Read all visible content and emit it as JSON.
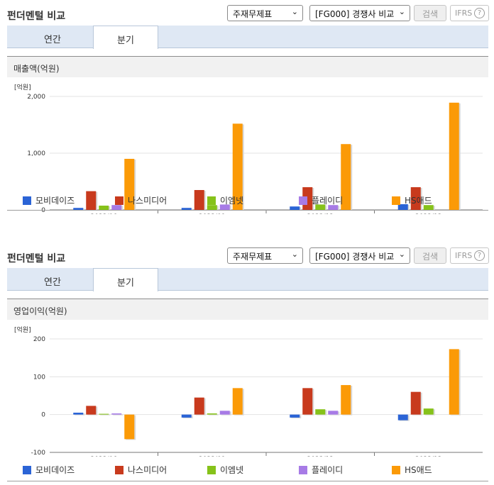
{
  "panels": [
    {
      "title": "펀더멘털 비교",
      "statement_select": "주재무제표",
      "compare_select": "[FG000] 경쟁사 비교",
      "search_label": "검색",
      "ifrs_label": "IFRS",
      "help_glyph": "?",
      "tabs": [
        {
          "label": "연간",
          "active": false
        },
        {
          "label": "분기",
          "active": true
        }
      ],
      "section_title": "매출액(억원)",
      "chart_data": {
        "type": "bar",
        "unit_label": "[억원]",
        "categories": [
          "2023/06",
          "2023/09",
          "2023/12",
          "2023/12"
        ],
        "yticks": [
          0,
          1000,
          2000
        ],
        "ytick_labels": [
          "0",
          "1,000",
          "2,000"
        ],
        "ylim": [
          0,
          2000
        ],
        "series": [
          {
            "name": "모비데이즈",
            "color": "#2b64d6",
            "values": [
              35,
              35,
              60,
              100
            ]
          },
          {
            "name": "나스미디어",
            "color": "#c83a1d",
            "values": [
              330,
              350,
              400,
              400
            ]
          },
          {
            "name": "이엠넷",
            "color": "#86c21a",
            "values": [
              75,
              85,
              95,
              85
            ]
          },
          {
            "name": "플레이디",
            "color": "#a77be6",
            "values": [
              85,
              95,
              85,
              0
            ]
          },
          {
            "name": "HS애드",
            "color": "#fb9a07",
            "values": [
              900,
              1520,
              1160,
              1890
            ]
          }
        ]
      }
    },
    {
      "title": "펀더멘털 비교",
      "statement_select": "주재무제표",
      "compare_select": "[FG000] 경쟁사 비교",
      "search_label": "검색",
      "ifrs_label": "IFRS",
      "help_glyph": "?",
      "tabs": [
        {
          "label": "연간",
          "active": false
        },
        {
          "label": "분기",
          "active": true
        }
      ],
      "section_title": "영업이익(억원)",
      "chart_data": {
        "type": "bar",
        "unit_label": "[억원]",
        "categories": [
          "2023/06",
          "2023/09",
          "2023/12",
          "2023/12"
        ],
        "yticks": [
          -100,
          0,
          100,
          200
        ],
        "ytick_labels": [
          "-100",
          "0",
          "100",
          "200"
        ],
        "ylim": [
          -100,
          200
        ],
        "series": [
          {
            "name": "모비데이즈",
            "color": "#2b64d6",
            "values": [
              5,
              -8,
              -8,
              -15
            ]
          },
          {
            "name": "나스미디어",
            "color": "#c83a1d",
            "values": [
              23,
              45,
              70,
              60
            ]
          },
          {
            "name": "이엠넷",
            "color": "#86c21a",
            "values": [
              2,
              3,
              14,
              16
            ]
          },
          {
            "name": "플레이디",
            "color": "#a77be6",
            "values": [
              3,
              10,
              10,
              0
            ]
          },
          {
            "name": "HS애드",
            "color": "#fb9a07",
            "values": [
              -65,
              70,
              78,
              173
            ]
          }
        ]
      }
    }
  ]
}
